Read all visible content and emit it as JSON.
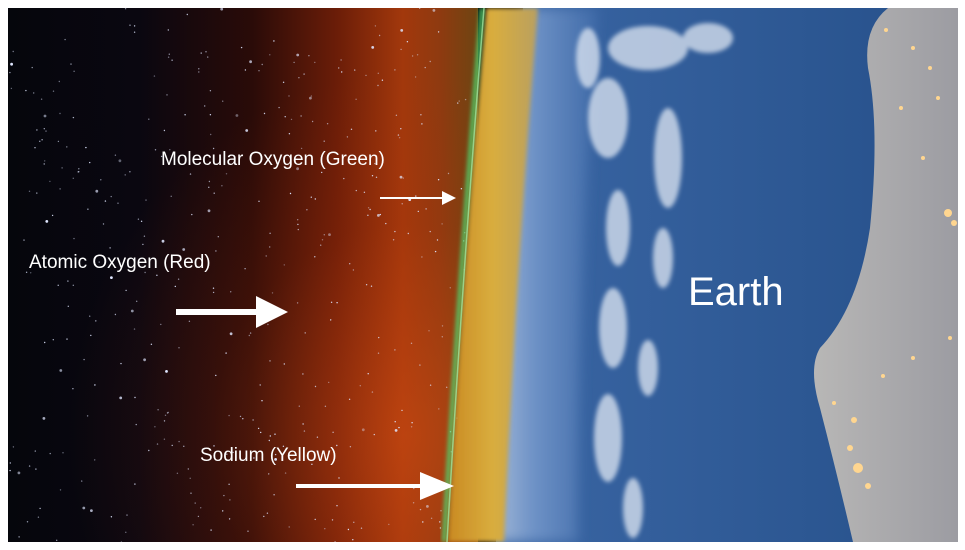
{
  "labels": {
    "molecular_oxygen": "Molecular Oxygen (Green)",
    "atomic_oxygen": "Atomic Oxygen (Red)",
    "sodium": "Sodium (Yellow)",
    "earth": "Earth"
  },
  "colors": {
    "space": "#05060c",
    "airglow_red": "#a2380c",
    "airglow_green": "#4fd06a",
    "airglow_yellow": "#d4a834",
    "atmosphere_blue": "#5b82c0",
    "ocean": "#2c5a93",
    "land": "#a9aab0",
    "label_text": "#ffffff"
  },
  "icons": [
    "arrow-right-icon"
  ]
}
